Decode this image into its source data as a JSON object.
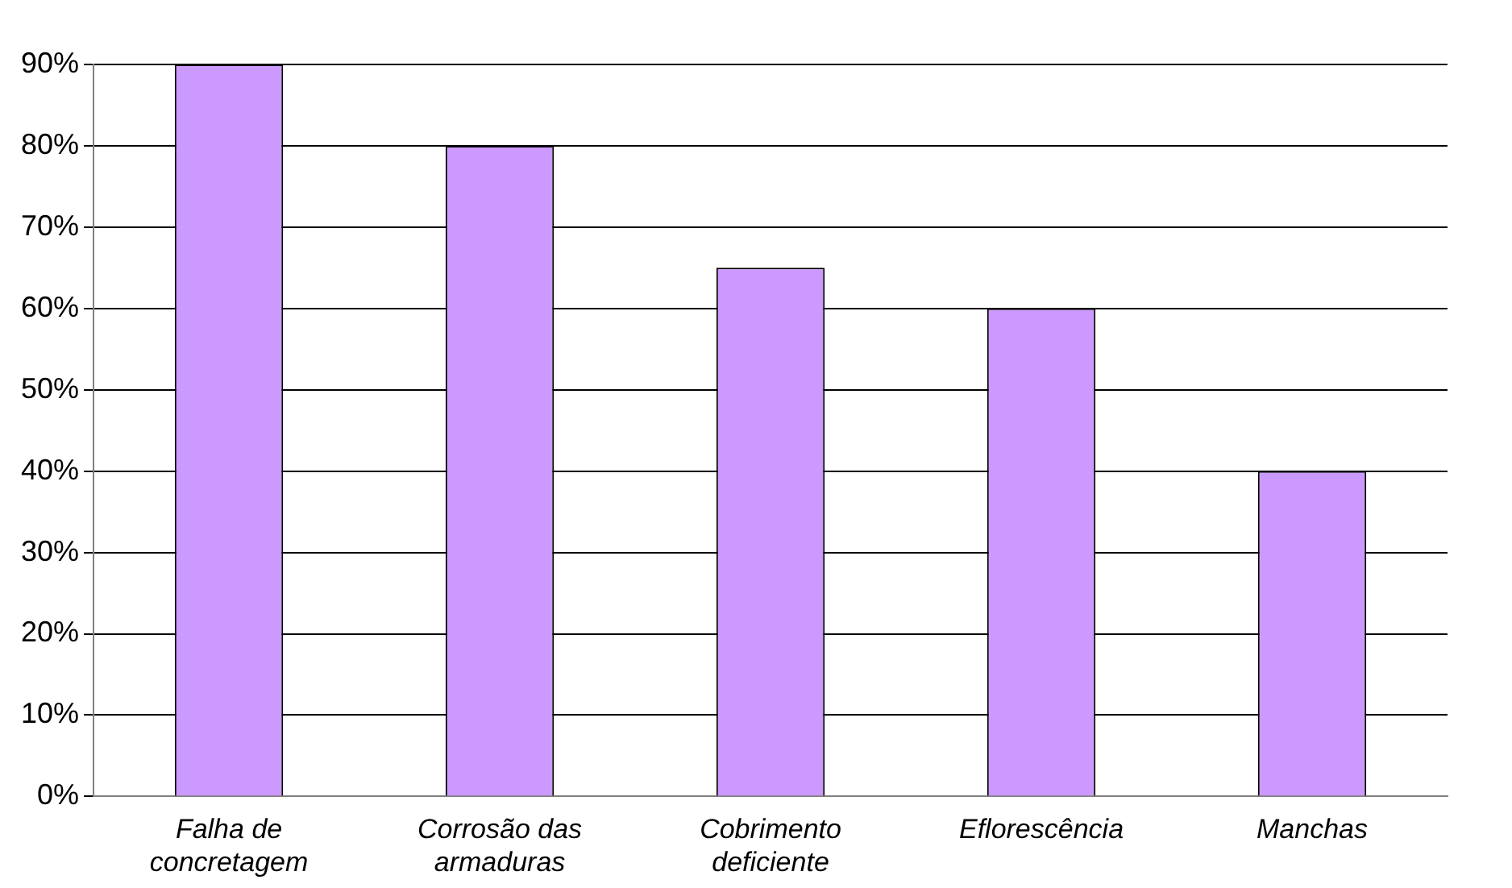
{
  "chart_data": {
    "type": "bar",
    "categories": [
      "Falha de concretagem",
      "Corrosão das armaduras",
      "Cobrimento deficiente",
      "Eflorescência",
      "Manchas"
    ],
    "values": [
      90,
      80,
      65,
      60,
      40
    ],
    "color": "#cc99ff",
    "ylim": [
      0,
      90
    ],
    "yticks": [
      {
        "value": 0,
        "label": "0%"
      },
      {
        "value": 10,
        "label": "10%"
      },
      {
        "value": 20,
        "label": "20%"
      },
      {
        "value": 30,
        "label": "30%"
      },
      {
        "value": 40,
        "label": "40%"
      },
      {
        "value": 50,
        "label": "50%"
      },
      {
        "value": 60,
        "label": "60%"
      },
      {
        "value": 70,
        "label": "70%"
      },
      {
        "value": 80,
        "label": "80%"
      },
      {
        "value": 90,
        "label": "90%"
      }
    ],
    "grid": "y"
  }
}
